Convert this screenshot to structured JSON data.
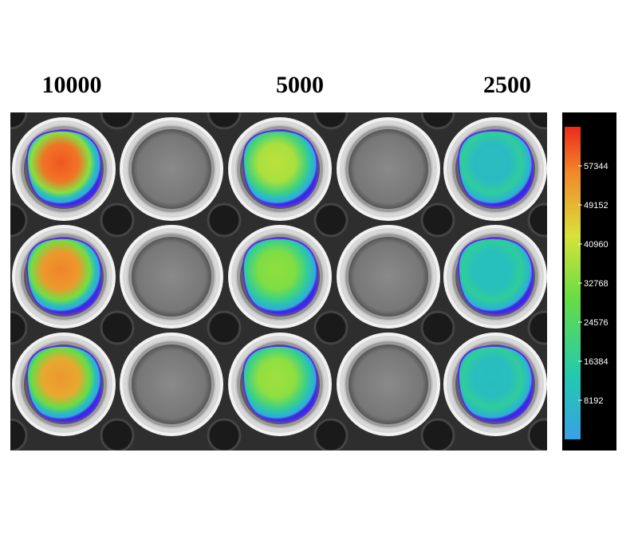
{
  "column_labels": [
    "10000",
    "5000",
    "2500"
  ],
  "colorbar": {
    "colormap": "rainbow",
    "colors": [
      "#3aa0e6",
      "#22c9b0",
      "#66dd44",
      "#d8e23a",
      "#f08a2a",
      "#ee2a1a"
    ],
    "tick_labels": [
      "57344",
      "49152",
      "40960",
      "32768",
      "24576",
      "16384",
      "8192"
    ],
    "tick_values": [
      57344,
      49152,
      40960,
      32768,
      24576,
      16384,
      8192
    ],
    "range": [
      0,
      65536
    ]
  },
  "plate": {
    "rows": 3,
    "columns": 5,
    "column_conditions": [
      "10000",
      "empty",
      "5000",
      "empty",
      "2500"
    ],
    "signal_levels": [
      [
        0.93,
        0,
        0.6,
        0,
        0.14
      ],
      [
        0.86,
        0,
        0.52,
        0,
        0.16
      ],
      [
        0.82,
        0,
        0.55,
        0,
        0.15
      ]
    ]
  }
}
